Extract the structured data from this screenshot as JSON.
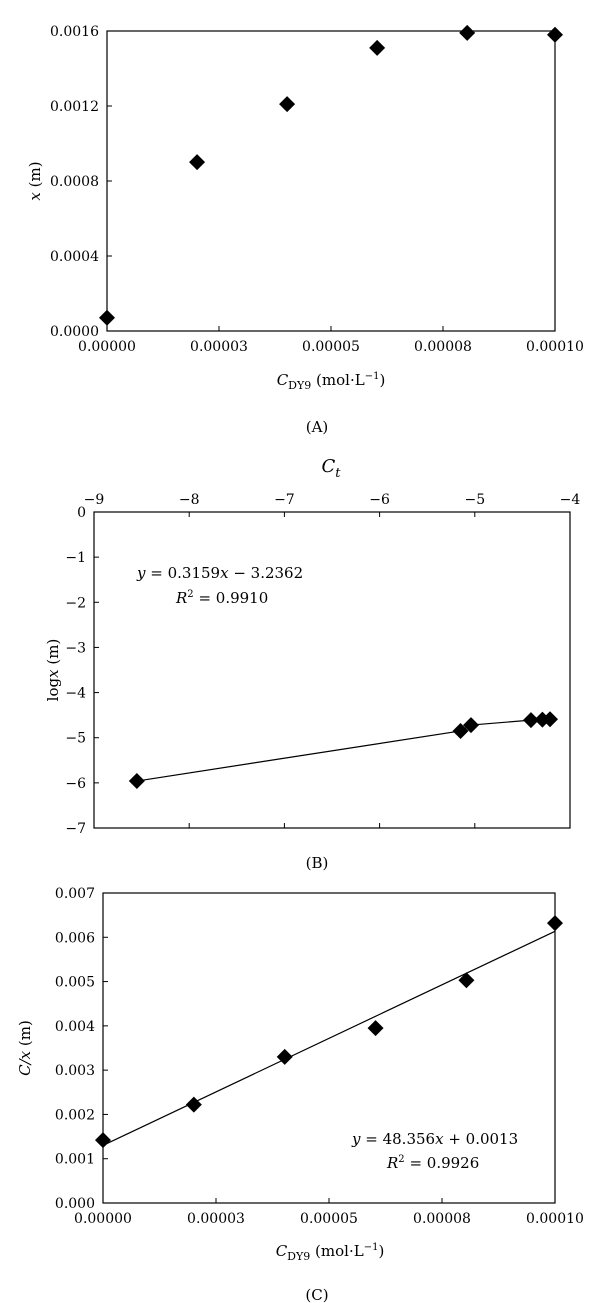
{
  "chart_data": [
    {
      "id": "A",
      "type": "scatter",
      "panel_label": "(A)",
      "xlabel": {
        "main": "C",
        "sub": "DY9",
        "unit_pre": "(mol·L",
        "unit_sup": "−1",
        "unit_post": ")"
      },
      "ylabel": {
        "italic": "x",
        "unit": "(m)"
      },
      "xlim": [
        0,
        0.0001
      ],
      "ylim": [
        0,
        0.0016
      ],
      "xticks": [
        "0.00000",
        "0.00003",
        "0.00005",
        "0.00008",
        "0.00010"
      ],
      "xtick_values": [
        0,
        2.5e-05,
        5e-05,
        7.5e-05,
        0.0001
      ],
      "yticks": [
        "0.0000",
        "0.0004",
        "0.0008",
        "0.0012",
        "0.0016"
      ],
      "ytick_values": [
        0,
        0.0004,
        0.0008,
        0.0012,
        0.0016
      ],
      "x": [
        0.0,
        2.01e-05,
        4.02e-05,
        6.03e-05,
        8.04e-05,
        0.0001
      ],
      "y": [
        7.1e-05,
        0.000901,
        0.00121,
        0.00151,
        0.00159,
        0.00158
      ],
      "marker": "diamond",
      "grid": false
    },
    {
      "id": "B",
      "type": "scatter",
      "panel_label": "(B)",
      "xlabel": {
        "main": "C",
        "sub": "t"
      },
      "xaxis_position": "top",
      "ylabel": {
        "text": "log",
        "italic": "x",
        "unit": "(m)"
      },
      "xlim": [
        -9,
        -4
      ],
      "ylim": [
        -7,
        0
      ],
      "xticks": [
        "−9",
        "−8",
        "−7",
        "−6",
        "−5",
        "−4"
      ],
      "xtick_values": [
        -9,
        -8,
        -7,
        -6,
        -5,
        -4
      ],
      "yticks": [
        "0",
        "−1",
        "−2",
        "−3",
        "−4",
        "−5",
        "−6",
        "−7"
      ],
      "ytick_values": [
        0,
        -1,
        -2,
        -3,
        -4,
        -5,
        -6,
        -7
      ],
      "x": [
        -8.55,
        -5.15,
        -5.04,
        -4.41,
        -4.29,
        -4.21
      ],
      "y": [
        -5.96,
        -4.85,
        -4.72,
        -4.61,
        -4.6,
        -4.59
      ],
      "marker": "diamond",
      "connect": true,
      "equation": {
        "line1": "y = 0.3159x − 3.2362",
        "r2_value": "0.9910",
        "position": "top-left"
      },
      "grid": false
    },
    {
      "id": "C",
      "type": "scatter",
      "panel_label": "(C)",
      "xlabel": {
        "main": "C",
        "sub": "DY9",
        "unit_pre": "(mol·L",
        "unit_sup": "−1",
        "unit_post": ")"
      },
      "ylabel": {
        "italic": "C/x",
        "unit": "(m)"
      },
      "xlim": [
        0,
        0.0001
      ],
      "ylim": [
        0,
        0.007
      ],
      "xticks": [
        "0.00000",
        "0.00003",
        "0.00005",
        "0.00008",
        "0.00010"
      ],
      "xtick_values": [
        0,
        2.5e-05,
        5e-05,
        7.5e-05,
        0.0001
      ],
      "yticks": [
        "0.000",
        "0.001",
        "0.002",
        "0.003",
        "0.004",
        "0.005",
        "0.006",
        "0.007"
      ],
      "ytick_values": [
        0,
        0.001,
        0.002,
        0.003,
        0.004,
        0.005,
        0.006,
        0.007
      ],
      "x": [
        0.0,
        2.01e-05,
        4.02e-05,
        6.03e-05,
        8.04e-05,
        0.0001
      ],
      "y": [
        0.00142,
        0.00222,
        0.0033,
        0.00395,
        0.00503,
        0.00632
      ],
      "marker": "diamond",
      "fit_line": {
        "slope": 48.356,
        "intercept": 0.0013
      },
      "equation": {
        "line1": "y = 48.356x + 0.0013",
        "r2_value": "0.9926",
        "position": "bottom-right"
      },
      "grid": false
    }
  ]
}
